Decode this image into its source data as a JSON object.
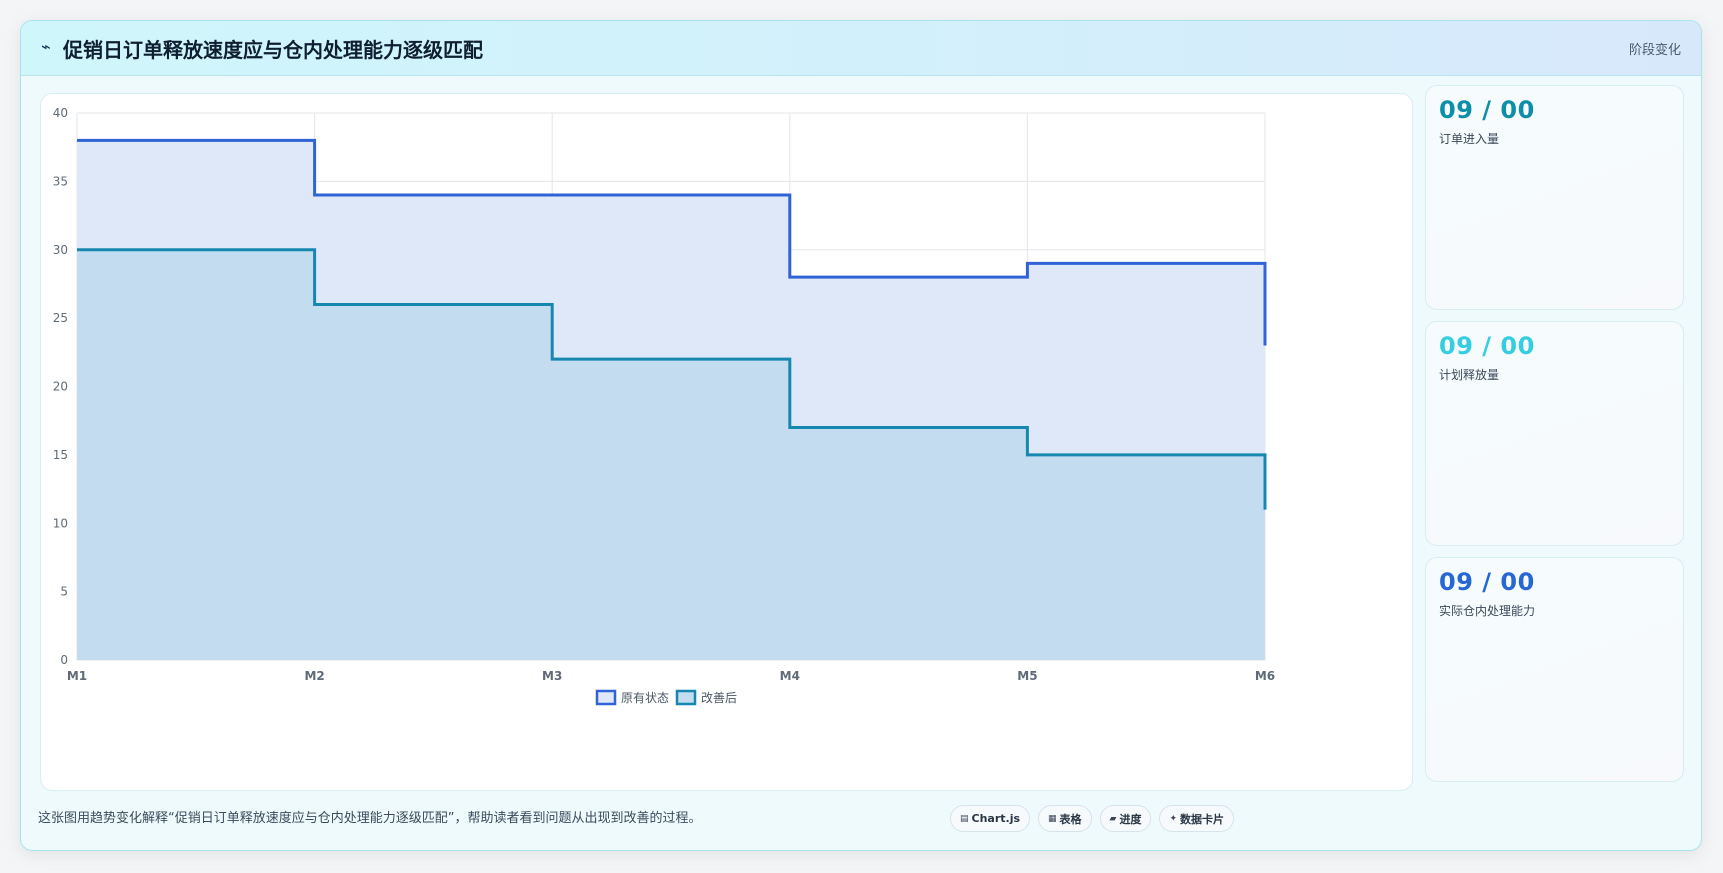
{
  "header": {
    "icon": "trend-icon",
    "icon_glyph": "⌁",
    "title": "促销日订单释放速度应与仓内处理能力逐级匹配",
    "right_label": "阶段变化"
  },
  "chart_data": {
    "type": "line",
    "step": "before",
    "fill": true,
    "categories": [
      "M1",
      "M2",
      "M3",
      "M4",
      "M5",
      "M6"
    ],
    "ylim": [
      0,
      40
    ],
    "yticks": [
      0,
      5,
      10,
      15,
      20,
      25,
      30,
      35,
      40
    ],
    "grid": true,
    "legend_position": "bottom",
    "series": [
      {
        "name": "原有状态",
        "values": [
          38,
          34,
          34,
          28,
          29,
          23
        ],
        "color": "#2f63d6",
        "fill": "#dfe8f9"
      },
      {
        "name": "改善后",
        "values": [
          30,
          26,
          22,
          17,
          15,
          11
        ],
        "color": "#1688b0",
        "fill": "#c4dcf0"
      }
    ]
  },
  "stats": [
    {
      "value": "09 / 00",
      "label": "订单进入量",
      "color": "#0e8fa7"
    },
    {
      "value": "09 / 00",
      "label": "计划释放量",
      "color": "#35cde0"
    },
    {
      "value": "09 / 00",
      "label": "实际仓内处理能力",
      "color": "#2667d4"
    }
  ],
  "footer": {
    "caption": "这张图用趋势变化解释“促销日订单释放速度应与仓内处理能力逐级匹配”，帮助读者看到问题从出现到改善的过程。",
    "chips": [
      {
        "icon": "chart-icon",
        "glyph": "▤",
        "label": "Chart.js"
      },
      {
        "icon": "table-icon",
        "glyph": "▦",
        "label": "表格"
      },
      {
        "icon": "progress-icon",
        "glyph": "▰",
        "label": "进度"
      },
      {
        "icon": "sparkle-icon",
        "glyph": "✦",
        "label": "数据卡片"
      }
    ]
  }
}
